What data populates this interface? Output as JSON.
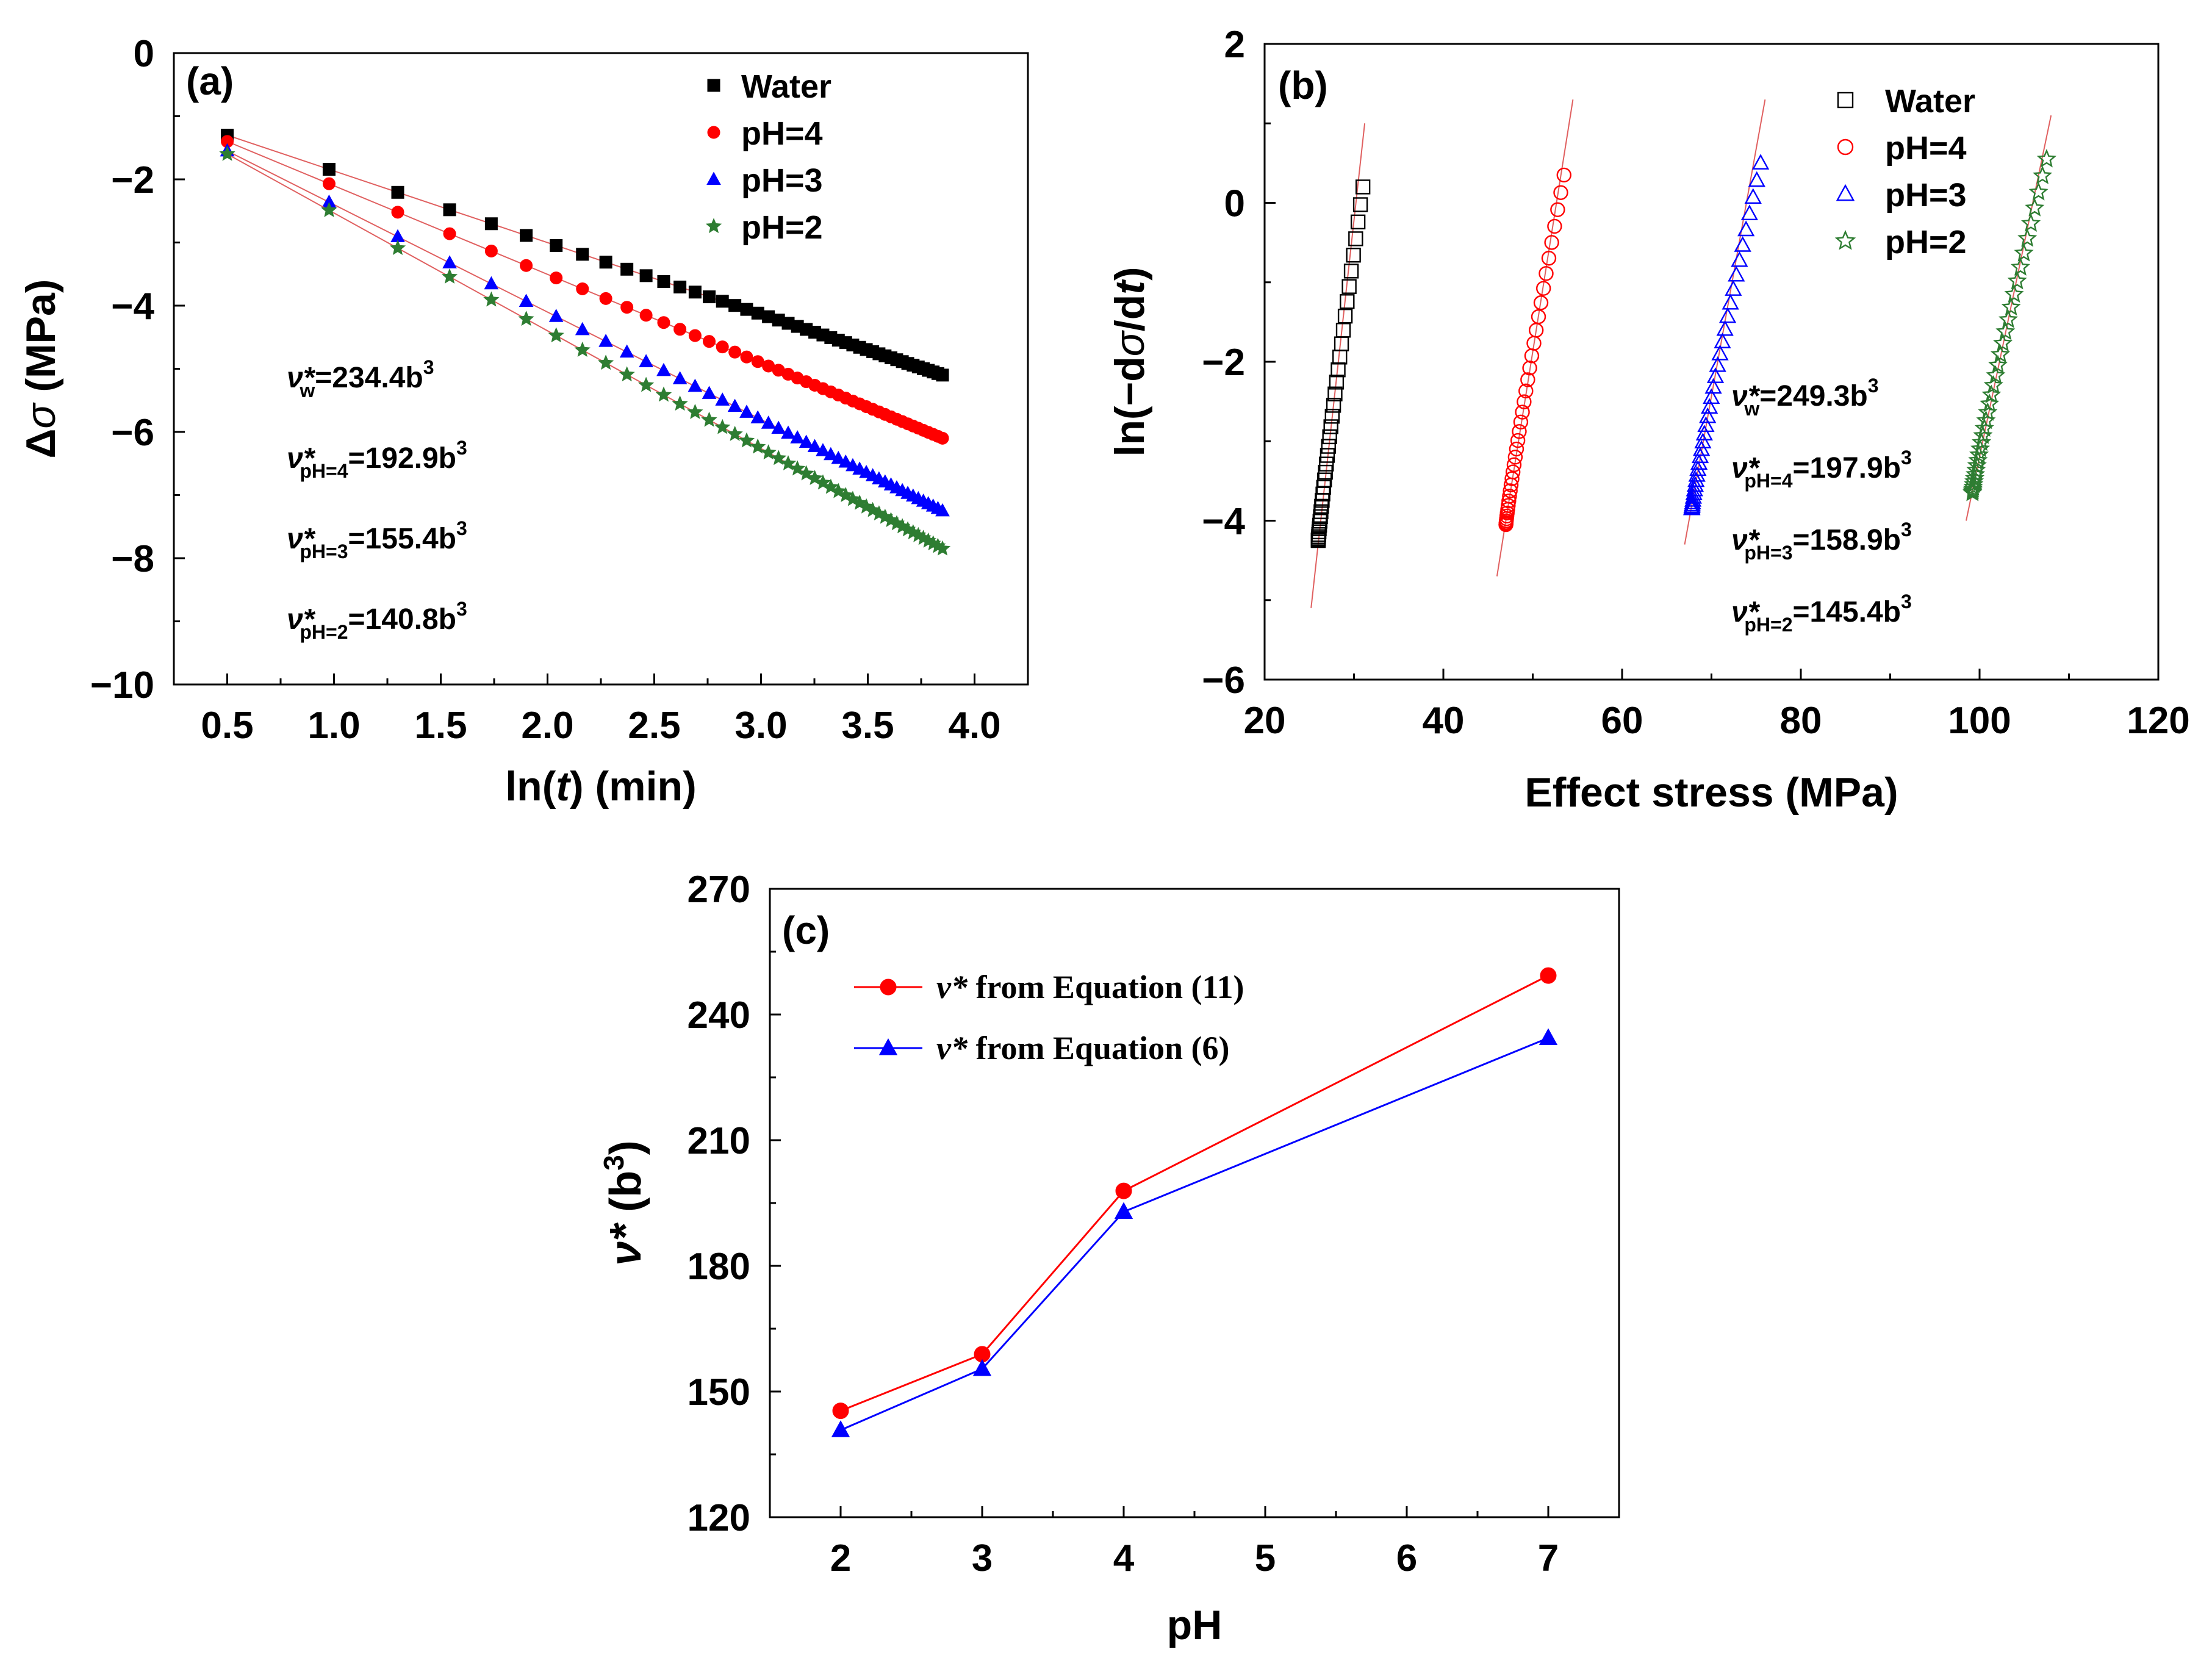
{
  "chart_data": [
    {
      "id": "a",
      "type": "scatter",
      "panel_label": "(a)",
      "xlabel": "ln(t) (min)",
      "ylabel": "Δσ (MPa)",
      "xlim": [
        0.25,
        4.25
      ],
      "ylim": [
        -10,
        0
      ],
      "xticks": [
        "0.5",
        "1.0",
        "1.5",
        "2.0",
        "2.5",
        "3.0",
        "3.5",
        "4.0"
      ],
      "yticks": [
        "0",
        "-2",
        "-4",
        "-6",
        "-8",
        "-10"
      ],
      "legend_position": "top-right",
      "series": [
        {
          "name": "Water",
          "color": "#000000",
          "marker": "filled-square",
          "fit_start": -1.3,
          "fit_end": -5.1,
          "n": 46
        },
        {
          "name": "pH=4",
          "color": "#ff0000",
          "marker": "filled-circle",
          "fit_start": -1.4,
          "fit_end": -6.1,
          "n": 46
        },
        {
          "name": "pH=3",
          "color": "#0000ff",
          "marker": "filled-triangle",
          "fit_start": -1.55,
          "fit_end": -7.25,
          "n": 46
        },
        {
          "name": "pH=2",
          "color": "#2e7d32",
          "marker": "filled-star",
          "fit_start": -1.6,
          "fit_end": -7.85,
          "n": 46
        }
      ],
      "x_start": 0.5,
      "x_end": 3.85,
      "annotations": [
        {
          "sym": "ν*",
          "sub": "w",
          "value": "=234.4b",
          "sup": "3"
        },
        {
          "sym": "ν*",
          "sub": "pH=4",
          "value": "=192.9b",
          "sup": "3"
        },
        {
          "sym": "ν*",
          "sub": "pH=3",
          "value": "=155.4b",
          "sup": "3"
        },
        {
          "sym": "ν*",
          "sub": "pH=2",
          "value": "=140.8b",
          "sup": "3"
        }
      ]
    },
    {
      "id": "b",
      "type": "scatter",
      "panel_label": "(b)",
      "xlabel": "Effect stress (MPa)",
      "ylabel": "ln(−dσ/dt)",
      "xlim": [
        20,
        120
      ],
      "ylim": [
        -6,
        2
      ],
      "xticks": [
        "20",
        "40",
        "60",
        "80",
        "100",
        "120"
      ],
      "yticks": [
        "2",
        "0",
        "-2",
        "-4",
        "-6"
      ],
      "legend_position": "top-right",
      "series": [
        {
          "name": "Water",
          "color": "#000000",
          "marker": "open-square",
          "x0": 26.0,
          "x1": 31.0,
          "y0": -4.25,
          "y1": 0.2,
          "line": [
            25.2,
            -5.1,
            31.2,
            1.0
          ]
        },
        {
          "name": "pH=4",
          "color": "#ff0000",
          "marker": "open-circle",
          "x0": 47.0,
          "x1": 53.5,
          "y0": -4.05,
          "y1": 0.35,
          "line": [
            46.0,
            -4.7,
            54.5,
            1.3
          ]
        },
        {
          "name": "pH=3",
          "color": "#0000ff",
          "marker": "open-triangle",
          "x0": 67.8,
          "x1": 75.5,
          "y0": -3.85,
          "y1": 0.5,
          "line": [
            67.0,
            -4.3,
            76.0,
            1.3
          ]
        },
        {
          "name": "pH=2",
          "color": "#2e7d32",
          "marker": "open-star",
          "x0": 99.2,
          "x1": 107.5,
          "y0": -3.65,
          "y1": 0.55,
          "line": [
            98.5,
            -4.0,
            108.0,
            1.1
          ]
        }
      ],
      "annotations": [
        {
          "sym": "ν*",
          "sub": "w",
          "value": "=249.3b",
          "sup": "3"
        },
        {
          "sym": "ν*",
          "sub": "pH=4",
          "value": "=197.9b",
          "sup": "3"
        },
        {
          "sym": "ν*",
          "sub": "pH=3",
          "value": "=158.9b",
          "sup": "3"
        },
        {
          "sym": "ν*",
          "sub": "pH=2",
          "value": "=145.4b",
          "sup": "3"
        }
      ]
    },
    {
      "id": "c",
      "type": "line",
      "panel_label": "(c)",
      "xlabel": "pH",
      "ylabel": "ν* (b³)",
      "xlim": [
        1.5,
        7.5
      ],
      "ylim": [
        120,
        270
      ],
      "xticks": [
        "2",
        "3",
        "4",
        "5",
        "6",
        "7"
      ],
      "yticks": [
        "270",
        "240",
        "210",
        "180",
        "150",
        "120"
      ],
      "legend_position": "top-left",
      "x": [
        2,
        3,
        4,
        7
      ],
      "series": [
        {
          "name": "ν* from Equation (11)",
          "color": "#ff0000",
          "marker": "filled-circle",
          "values": [
            145.4,
            158.9,
            197.9,
            249.3
          ]
        },
        {
          "name": "ν* from Equation (6)",
          "color": "#0000ff",
          "marker": "filled-triangle",
          "values": [
            140.8,
            155.4,
            192.9,
            234.4
          ]
        }
      ]
    }
  ]
}
